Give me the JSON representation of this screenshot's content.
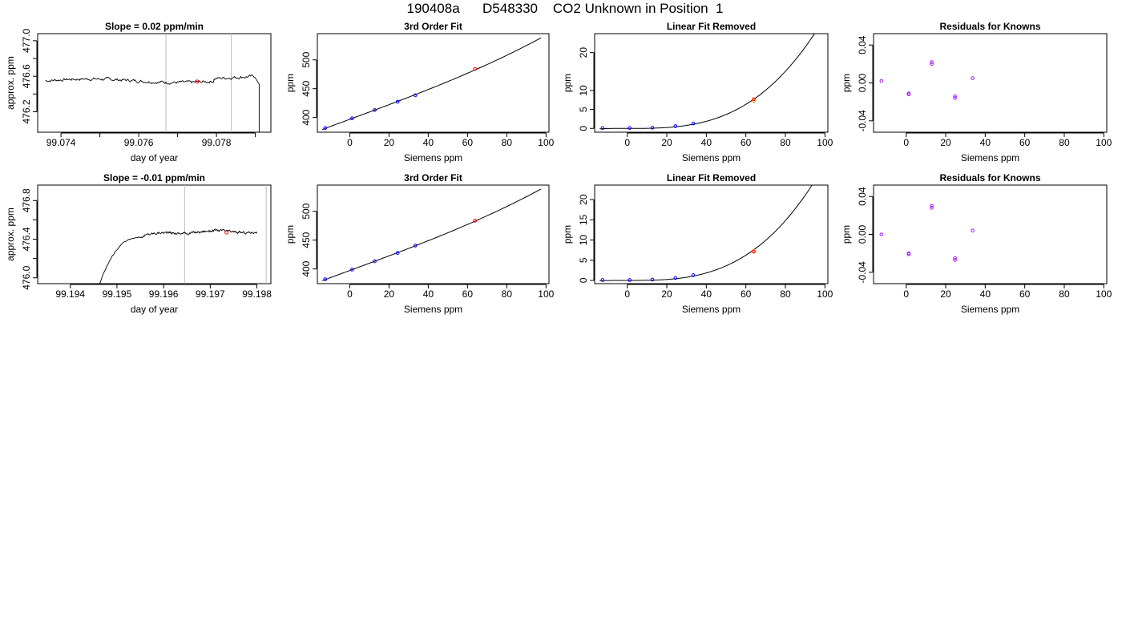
{
  "page": {
    "title": "190408a      D548330    CO2 Unknown in Position  1"
  },
  "colors": {
    "line": "#000000",
    "known_point": "#0000ff",
    "unknown_point": "#ff0000",
    "known_point_alt": "#a020f0",
    "unknown_point_alt": "#ff8c00",
    "marker_line": "#bebebe"
  },
  "chart_data": [
    {
      "id": "r1-timeseries",
      "type": "line",
      "title": "Slope =  0.02  ppm/min",
      "xlabel": "day of year",
      "ylabel": "approx. ppm",
      "xlim": [
        99.0734,
        99.0794
      ],
      "ylim": [
        475.97,
        477.08
      ],
      "xticks": [
        99.074,
        99.075,
        99.076,
        99.077,
        99.078,
        99.079
      ],
      "xtick_labels": [
        "99.074",
        "",
        "99.076",
        "",
        "99.078",
        ""
      ],
      "yticks": [
        476.2,
        476.4,
        476.6,
        476.8,
        477.0
      ],
      "ytick_labels": [
        "476.2",
        "",
        "476.6",
        "",
        "477.0"
      ],
      "series": [
        {
          "x_start": 99.0736,
          "x_end": 99.079,
          "level": 476.55,
          "tail_x": 99.0791,
          "tail_y": 475.95,
          "noise": 0.022
        }
      ],
      "vlines": [
        99.0767,
        99.07838
      ],
      "marker": {
        "x": 99.0775,
        "y": 476.54
      }
    },
    {
      "id": "r1-fit",
      "type": "line",
      "title": "3rd Order Fit",
      "xlabel": "Siemens ppm",
      "ylabel": "ppm",
      "xlim": [
        -16.5,
        101.5
      ],
      "ylim": [
        374.5,
        545.5
      ],
      "xticks": [
        0,
        20,
        40,
        60,
        80,
        100
      ],
      "xtick_labels": [
        "0",
        "20",
        "40",
        "60",
        "80",
        "100"
      ],
      "yticks": [
        400,
        450,
        500
      ],
      "ytick_labels": [
        "400",
        "450",
        "500"
      ],
      "curve": {
        "a": 396.9,
        "b": 1.26,
        "c": 0.0,
        "d": 2e-05,
        "x0": -14,
        "x1": 97.5
      },
      "knowns": [
        [
          -12.5,
          381.8
        ],
        [
          1.2,
          398.5
        ],
        [
          12.7,
          412.9
        ],
        [
          24.4,
          427.3
        ],
        [
          33.4,
          438.6
        ]
      ],
      "unknowns": [
        [
          63.8,
          484.3
        ]
      ]
    },
    {
      "id": "r1-linear-removed",
      "type": "line",
      "title": "Linear Fit Removed",
      "xlabel": "Siemens ppm",
      "ylabel": "ppm",
      "xlim": [
        -16.5,
        101.5
      ],
      "ylim": [
        -1,
        25
      ],
      "xticks": [
        0,
        20,
        40,
        60,
        80,
        100
      ],
      "xtick_labels": [
        "0",
        "20",
        "40",
        "60",
        "80",
        "100"
      ],
      "yticks": [
        0,
        5,
        10,
        20
      ],
      "ytick_labels": [
        "0",
        "5",
        "10",
        "20"
      ],
      "curve": {
        "a": 0.0,
        "b": 0.0,
        "c": 0.0,
        "d": 2.94e-05,
        "x0": -14,
        "x1": 98
      },
      "knowns": [
        [
          -12.5,
          0.1
        ],
        [
          1.2,
          0.1
        ],
        [
          12.7,
          0.2
        ],
        [
          24.4,
          0.6
        ],
        [
          33.4,
          1.3
        ]
      ],
      "unknowns": [
        [
          64.0,
          7.7
        ]
      ],
      "unknowns_alt": [
        [
          64.0,
          7.3
        ]
      ]
    },
    {
      "id": "r1-residuals",
      "type": "scatter",
      "title": "Residuals for Knowns",
      "xlabel": "Siemens ppm",
      "ylabel": "ppm",
      "xlim": [
        -16.5,
        101.5
      ],
      "ylim": [
        -0.052,
        0.052
      ],
      "xticks": [
        0,
        20,
        40,
        60,
        80,
        100
      ],
      "xtick_labels": [
        "0",
        "20",
        "40",
        "60",
        "80",
        "100"
      ],
      "yticks": [
        -0.04,
        0.0,
        0.04
      ],
      "ytick_labels": [
        "-0.04",
        "0.00",
        "0.04"
      ],
      "knowns": [
        [
          -12.5,
          0.002
        ],
        [
          1.3,
          -0.012
        ],
        [
          12.9,
          0.022
        ],
        [
          24.7,
          -0.016
        ],
        [
          33.6,
          0.005
        ]
      ],
      "knowns_alt": [
        [
          1.3,
          -0.011
        ],
        [
          12.9,
          0.02
        ],
        [
          24.7,
          -0.014
        ]
      ]
    },
    {
      "id": "r2-timeseries",
      "type": "line",
      "title": "Slope =  -0.01  ppm/min",
      "xlabel": "day of year",
      "ylabel": "approx. ppm",
      "xlim": [
        99.1933,
        99.1983
      ],
      "ylim": [
        475.94,
        476.96
      ],
      "xticks": [
        99.194,
        99.195,
        99.196,
        99.197,
        99.198
      ],
      "xtick_labels": [
        "99.194",
        "99.195",
        "99.196",
        "99.197",
        "99.198"
      ],
      "yticks": [
        476.0,
        476.2,
        476.4,
        476.6,
        476.8
      ],
      "ytick_labels": [
        "476.0",
        "",
        "476.4",
        "",
        "476.8"
      ],
      "series": [
        {
          "rise_x0": 99.1946,
          "rise_x1": 99.1955,
          "x_end": 99.198,
          "start_y": 475.9,
          "level": 476.48,
          "noise": 0.015
        }
      ],
      "vlines": [
        99.19645,
        99.1982
      ],
      "marker": {
        "x": 99.19735,
        "y": 476.47
      }
    },
    {
      "id": "r2-fit",
      "type": "line",
      "title": "3rd Order Fit",
      "xlabel": "Siemens ppm",
      "ylabel": "ppm",
      "xlim": [
        -16.5,
        101.5
      ],
      "ylim": [
        374.5,
        545.5
      ],
      "xticks": [
        0,
        20,
        40,
        60,
        80,
        100
      ],
      "xtick_labels": [
        "0",
        "20",
        "40",
        "60",
        "80",
        "100"
      ],
      "yticks": [
        400,
        450,
        500
      ],
      "ytick_labels": [
        "400",
        "450",
        "500"
      ],
      "curve": {
        "a": 397.3,
        "b": 1.26,
        "c": 0.0,
        "d": 2e-05,
        "x0": -14,
        "x1": 97.5
      },
      "knowns": [
        [
          -12.5,
          382.1
        ],
        [
          1.2,
          398.9
        ],
        [
          12.7,
          413.3
        ],
        [
          24.4,
          427.6
        ],
        [
          33.4,
          440.5
        ]
      ],
      "unknowns": [
        [
          63.8,
          483.7
        ]
      ]
    },
    {
      "id": "r2-linear-removed",
      "type": "line",
      "title": "Linear Fit Removed",
      "xlabel": "Siemens ppm",
      "ylabel": "ppm",
      "xlim": [
        -16.5,
        101.5
      ],
      "ylim": [
        -0.8,
        23.6
      ],
      "xticks": [
        0,
        20,
        40,
        60,
        80,
        100
      ],
      "xtick_labels": [
        "0",
        "20",
        "40",
        "60",
        "80",
        "100"
      ],
      "yticks": [
        0,
        5,
        10,
        15,
        20
      ],
      "ytick_labels": [
        "0",
        "5",
        "10",
        "15",
        "20"
      ],
      "curve": {
        "a": 0.0,
        "b": 0.0,
        "c": 0.0,
        "d": 2.89e-05,
        "x0": -14,
        "x1": 98
      },
      "knowns": [
        [
          -12.5,
          0.1
        ],
        [
          1.2,
          0.1
        ],
        [
          12.7,
          0.2
        ],
        [
          24.4,
          0.6
        ],
        [
          33.4,
          1.3
        ]
      ],
      "unknowns": [
        [
          64.0,
          7.1
        ]
      ],
      "unknowns_alt": [
        [
          64.0,
          7.3
        ]
      ]
    },
    {
      "id": "r2-residuals",
      "type": "scatter",
      "title": "Residuals for Knowns",
      "xlabel": "Siemens ppm",
      "ylabel": "ppm",
      "xlim": [
        -16.5,
        101.5
      ],
      "ylim": [
        -0.052,
        0.052
      ],
      "xticks": [
        0,
        20,
        40,
        60,
        80,
        100
      ],
      "xtick_labels": [
        "0",
        "20",
        "40",
        "60",
        "80",
        "100"
      ],
      "yticks": [
        -0.04,
        0.0,
        0.04
      ],
      "ytick_labels": [
        "-0.04",
        "0.00",
        "0.04"
      ],
      "knowns": [
        [
          -12.5,
          0.0
        ],
        [
          1.3,
          -0.02
        ],
        [
          12.9,
          0.03
        ],
        [
          24.7,
          -0.025
        ],
        [
          33.6,
          0.004
        ]
      ],
      "knowns_alt": [
        [
          1.3,
          -0.021
        ],
        [
          12.9,
          0.028
        ],
        [
          24.7,
          -0.027
        ]
      ]
    }
  ]
}
